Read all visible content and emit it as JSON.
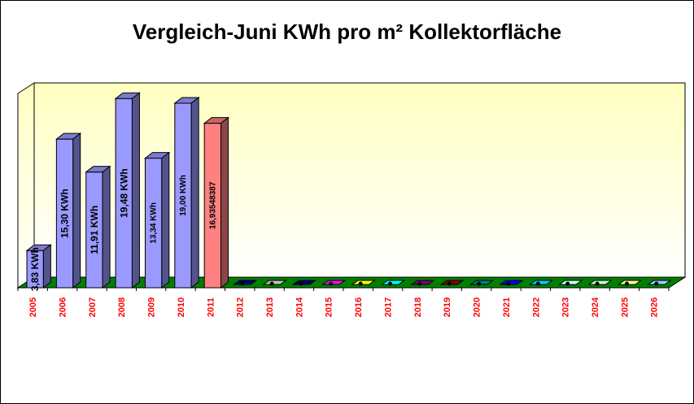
{
  "chart_data": {
    "type": "bar",
    "title": "Vergleich-Juni KWh pro m² Kollektorfläche",
    "categories": [
      "2005",
      "2006",
      "2007",
      "2008",
      "2009",
      "2010",
      "2011",
      "2012",
      "2013",
      "2014",
      "2015",
      "2016",
      "2017",
      "2018",
      "2019",
      "2020",
      "2021",
      "2022",
      "2023",
      "2024",
      "2025",
      "2026"
    ],
    "values": [
      3.83,
      15.3,
      11.91,
      19.48,
      13.34,
      19.0,
      16.93548387,
      0,
      0,
      0,
      0,
      0,
      0,
      0,
      0,
      0,
      0,
      0,
      0,
      0,
      0,
      0
    ],
    "data_labels": [
      "3,83 KWh",
      "15,30 KWh",
      "11,91 KWh",
      "19,48 KWh",
      "13,34 KWh",
      "19,00 KWh",
      "16,93548387",
      "",
      "",
      "",
      "",
      "",
      "",
      "",
      "",
      "",
      "",
      "",
      "",
      "",
      "",
      ""
    ],
    "ylim": [
      0,
      20
    ],
    "grid": false,
    "legend": "none",
    "colors": {
      "bar": "#9999ff",
      "bar_highlight": "#ff8080",
      "wall_top": "#ffffc0",
      "wall_bottom": "#ffffff",
      "floor": "#008000",
      "tick_label": "#ff0000",
      "empty_markers": [
        "#000080",
        "#c0c0c0",
        "#000080",
        "#ff00ff",
        "#ffff00",
        "#00ffff",
        "#800080",
        "#800000",
        "#008080",
        "#0000ff",
        "#00ccff",
        "#ccffff",
        "#ccffcc",
        "#ffff99",
        "#99ccff"
      ]
    }
  }
}
